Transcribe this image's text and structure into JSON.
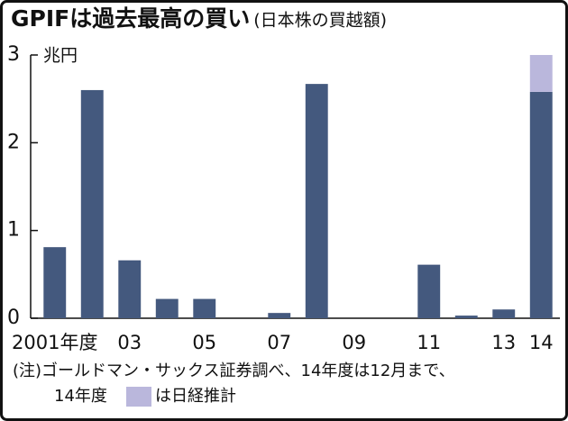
{
  "chart_data": {
    "type": "bar",
    "stacked": true,
    "title": "GPIFは過去最高の買い",
    "subtitle": "(日本株の買越額)",
    "y_unit": "兆円",
    "categories": [
      "2001年度",
      null,
      "03",
      null,
      "05",
      null,
      "07",
      null,
      "09",
      null,
      "11",
      null,
      "13",
      "14"
    ],
    "series": [
      {
        "color": "#44597e",
        "values": [
          0.81,
          2.6,
          0.66,
          0.22,
          0.22,
          0,
          0.06,
          2.67,
          0,
          0,
          0.61,
          0.03,
          0.1,
          2.58
        ]
      },
      {
        "name": "は日経推計",
        "color": "#bab7dc",
        "values": [
          null,
          null,
          null,
          null,
          null,
          null,
          null,
          null,
          null,
          null,
          null,
          null,
          null,
          0.42
        ]
      }
    ],
    "ylim": [
      0,
      3
    ],
    "yticks": [
      0,
      1,
      2,
      3
    ],
    "grid": false,
    "note": "(注)ゴールドマン・サックス証券調べ、14年度は12月まで、",
    "legend_prefix": "14年度"
  }
}
